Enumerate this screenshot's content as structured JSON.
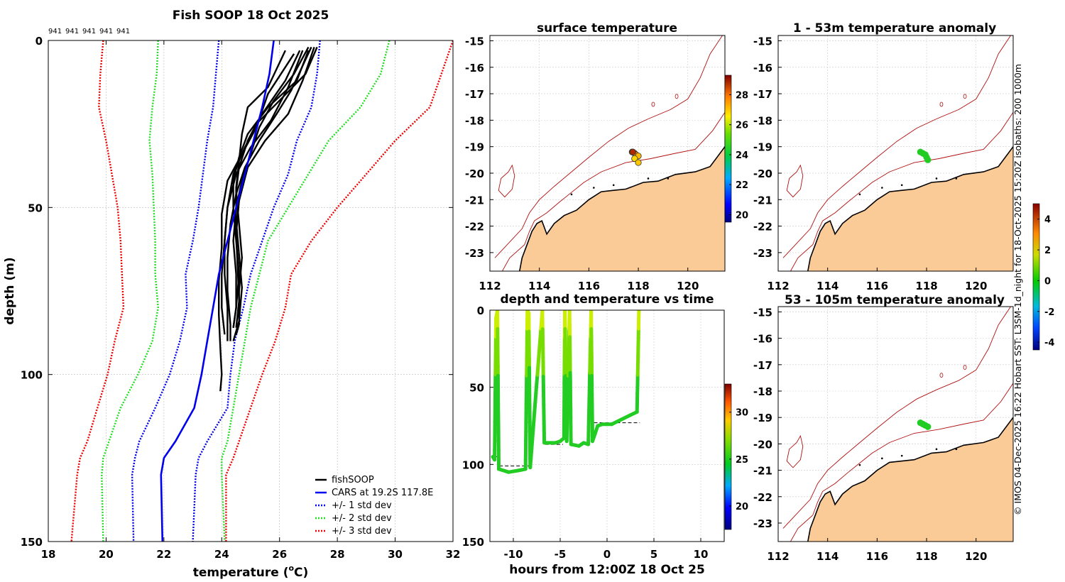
{
  "colors": {
    "land": "#fbcb97",
    "coast": "#000000",
    "isobath": "#b01010",
    "fishsoop": "#000000",
    "cars": "#0000ee",
    "std1": "#0000ee",
    "std2": "#22dd22",
    "std3": "#ee0000"
  },
  "chart_data": [
    {
      "id": "profile",
      "type": "line",
      "title": "Fish SOOP 18 Oct 2025",
      "xlabel_main": "temperature (",
      "xlabel_sup": "o",
      "xlabel_end": "C)",
      "ylabel": "depth (m)",
      "xlim": [
        18,
        32
      ],
      "ylim": [
        0,
        150
      ],
      "xticks": [
        "18",
        "20",
        "22",
        "24",
        "26",
        "28",
        "30",
        "32"
      ],
      "yticks": [
        "0",
        "50",
        "100",
        "150"
      ],
      "top_labels": [
        "941",
        "941",
        "941",
        "941",
        "941"
      ],
      "legend": [
        "fishSOOP",
        "CARS at 19.2S 117.8E",
        "+/- 1 std dev",
        "+/- 2 std dev",
        "+/- 3 std dev"
      ],
      "cars_depth": [
        0,
        10,
        20,
        30,
        40,
        50,
        60,
        70,
        80,
        90,
        100,
        110,
        120,
        125,
        130,
        150
      ],
      "cars_temp": [
        25.8,
        25.65,
        25.4,
        25.1,
        24.8,
        24.5,
        24.2,
        23.9,
        23.7,
        23.5,
        23.3,
        23.05,
        22.4,
        22.0,
        21.9,
        21.95
      ],
      "std_depth": [
        0,
        10,
        20,
        30,
        40,
        50,
        60,
        70,
        80,
        90,
        100,
        110,
        120,
        125,
        130,
        150
      ],
      "std1_low": [
        23.9,
        23.8,
        23.7,
        23.5,
        23.35,
        23.2,
        23.0,
        22.75,
        22.8,
        22.55,
        22.2,
        21.7,
        21.15,
        21.0,
        20.9,
        20.95
      ],
      "std1_high": [
        27.4,
        27.3,
        27.1,
        26.6,
        26.3,
        25.8,
        25.4,
        25.0,
        24.75,
        24.45,
        24.3,
        24.2,
        23.5,
        23.2,
        23.1,
        23.0
      ],
      "std2_low": [
        21.8,
        21.75,
        21.6,
        21.5,
        21.6,
        21.65,
        21.7,
        21.7,
        21.8,
        21.6,
        21.1,
        20.5,
        20.1,
        19.9,
        19.85,
        19.9
      ],
      "std2_high": [
        29.8,
        29.5,
        28.8,
        27.7,
        27.0,
        26.3,
        25.6,
        25.3,
        25.0,
        24.8,
        24.6,
        24.4,
        24.2,
        24.0,
        24.0,
        24.1
      ],
      "std3_low": [
        19.9,
        19.8,
        19.75,
        20.0,
        20.2,
        20.4,
        20.5,
        20.55,
        20.6,
        20.3,
        20.05,
        19.7,
        19.35,
        19.1,
        19.0,
        18.8
      ],
      "std3_high": [
        32.0,
        31.6,
        31.2,
        30.0,
        29.0,
        28.0,
        27.1,
        26.4,
        26.2,
        25.85,
        25.4,
        25.0,
        24.6,
        24.4,
        24.15,
        24.15
      ],
      "fishsoop_casts": [
        {
          "depth": [
            2,
            10,
            18,
            25,
            30,
            38,
            45,
            55,
            65,
            75,
            85,
            88
          ],
          "temp": [
            27.3,
            26.9,
            26.0,
            25.2,
            24.9,
            24.6,
            24.5,
            24.6,
            24.7,
            24.6,
            24.6,
            24.5
          ]
        },
        {
          "depth": [
            3,
            12,
            20,
            28,
            35,
            42,
            50,
            60,
            70,
            80,
            86
          ],
          "temp": [
            27.0,
            26.6,
            25.6,
            24.9,
            24.6,
            24.4,
            24.4,
            24.5,
            24.6,
            24.5,
            24.4
          ]
        },
        {
          "depth": [
            2,
            15,
            22,
            30,
            38,
            46,
            55,
            65,
            75,
            85,
            90
          ],
          "temp": [
            27.1,
            26.4,
            25.9,
            25.3,
            24.8,
            24.5,
            24.3,
            24.2,
            24.2,
            24.3,
            24.3
          ]
        },
        {
          "depth": [
            3,
            14,
            24,
            32,
            40,
            50,
            60,
            70,
            80,
            88
          ],
          "temp": [
            26.8,
            26.3,
            25.7,
            25.0,
            24.5,
            24.2,
            24.1,
            24.0,
            24.0,
            24.1
          ]
        },
        {
          "depth": [
            4,
            16,
            26,
            34,
            42,
            52,
            62,
            72,
            82,
            92,
            100,
            105
          ],
          "temp": [
            26.5,
            25.6,
            25.2,
            24.7,
            24.2,
            24.0,
            24.0,
            23.9,
            23.9,
            23.95,
            24.0,
            23.95
          ]
        },
        {
          "depth": [
            2,
            12,
            22,
            30,
            38,
            48,
            58,
            68,
            78,
            86
          ],
          "temp": [
            27.2,
            26.8,
            26.3,
            25.5,
            24.9,
            24.6,
            24.5,
            24.55,
            24.6,
            24.5
          ]
        },
        {
          "depth": [
            3,
            14,
            20,
            28,
            36,
            44,
            54,
            64,
            74,
            84,
            90
          ],
          "temp": [
            26.2,
            25.6,
            24.9,
            24.7,
            24.6,
            24.5,
            24.5,
            24.6,
            24.7,
            24.6,
            24.4
          ]
        },
        {
          "depth": [
            2,
            10,
            18,
            26,
            34,
            42,
            50,
            60,
            70,
            80,
            86
          ],
          "temp": [
            27.0,
            26.5,
            25.8,
            25.3,
            25.0,
            24.7,
            24.5,
            24.4,
            24.5,
            24.5,
            24.4
          ]
        },
        {
          "depth": [
            3,
            12,
            22,
            32,
            40,
            50,
            60,
            70,
            80,
            90
          ],
          "temp": [
            26.7,
            26.2,
            25.4,
            24.8,
            24.4,
            24.2,
            24.1,
            24.1,
            24.2,
            24.2
          ]
        }
      ]
    },
    {
      "id": "surface",
      "type": "scatter",
      "title": "surface temperature",
      "xlim": [
        112,
        121.5
      ],
      "ylim": [
        -23.7,
        -14.8
      ],
      "xticks": [
        "112",
        "114",
        "116",
        "118",
        "120"
      ],
      "yticks": [
        "-15",
        "-16",
        "-17",
        "-18",
        "-19",
        "-20",
        "-21",
        "-22",
        "-23"
      ],
      "cbar_ticks": [
        "20",
        "22",
        "24",
        "26",
        "28"
      ],
      "cbar_range": [
        19.5,
        29.3
      ],
      "points": [
        {
          "lon": 117.75,
          "lat": -19.2,
          "value": 28.5
        },
        {
          "lon": 117.85,
          "lat": -19.25,
          "value": 28.3
        },
        {
          "lon": 117.9,
          "lat": -19.3,
          "value": 27.5
        },
        {
          "lon": 118.0,
          "lat": -19.35,
          "value": 27.2
        },
        {
          "lon": 117.85,
          "lat": -19.45,
          "value": 26.8
        },
        {
          "lon": 118.0,
          "lat": -19.6,
          "value": 27.0
        },
        {
          "lon": 117.78,
          "lat": -19.2,
          "value": 28.8
        }
      ]
    },
    {
      "id": "anom1",
      "type": "scatter",
      "title": "1 - 53m temperature anomaly",
      "xlim": [
        112,
        121.5
      ],
      "ylim": [
        -23.7,
        -14.8
      ],
      "xticks": [
        "112",
        "114",
        "116",
        "118",
        "120"
      ],
      "yticks": [
        "-15",
        "-16",
        "-17",
        "-18",
        "-19",
        "-20",
        "-21",
        "-22",
        "-23"
      ],
      "points": [
        {
          "lon": 117.75,
          "lat": -19.2,
          "value": 0.2
        },
        {
          "lon": 117.85,
          "lat": -19.25,
          "value": 0.1
        },
        {
          "lon": 117.95,
          "lat": -19.3,
          "value": 0.3
        },
        {
          "lon": 118.0,
          "lat": -19.4,
          "value": 0.0
        },
        {
          "lon": 118.05,
          "lat": -19.5,
          "value": 0.2
        }
      ]
    },
    {
      "id": "anom2",
      "type": "scatter",
      "title": "53 - 105m temperature anomaly",
      "xlim": [
        112,
        121.5
      ],
      "ylim": [
        -23.7,
        -14.8
      ],
      "xticks": [
        "112",
        "114",
        "116",
        "118",
        "120"
      ],
      "yticks": [
        "-15",
        "-16",
        "-17",
        "-18",
        "-19",
        "-20",
        "-21",
        "-22",
        "-23"
      ],
      "cbar_ticks": [
        "4",
        "2",
        "0",
        "-2",
        "-4"
      ],
      "cbar_range": [
        -4.5,
        5.0
      ],
      "points": [
        {
          "lon": 117.75,
          "lat": -19.2,
          "value": 0.1
        },
        {
          "lon": 117.85,
          "lat": -19.25,
          "value": 0.0
        },
        {
          "lon": 117.95,
          "lat": -19.3,
          "value": 0.2
        },
        {
          "lon": 118.05,
          "lat": -19.35,
          "value": 0.1
        }
      ]
    },
    {
      "id": "timeseries",
      "type": "line",
      "title": "depth and temperature vs time",
      "xlabel": "hours from 12:00Z 18 Oct 25",
      "xlim": [
        -12.5,
        12.5
      ],
      "ylim": [
        0,
        150
      ],
      "xticks": [
        "-10",
        "-5",
        "0",
        "5",
        "10"
      ],
      "yticks": [
        "0",
        "50",
        "100",
        "150"
      ],
      "cbar_ticks": [
        "30",
        "25",
        "20"
      ],
      "cbar_range": [
        17.5,
        33
      ],
      "track": [
        {
          "t": -12.2,
          "d": 95
        },
        {
          "t": -12.0,
          "d": 97
        },
        {
          "t": -11.85,
          "d": 5
        },
        {
          "t": -11.7,
          "d": 0
        },
        {
          "t": -11.55,
          "d": 103
        },
        {
          "t": -10.5,
          "d": 105
        },
        {
          "t": -9.5,
          "d": 104
        },
        {
          "t": -8.7,
          "d": 103
        },
        {
          "t": -8.5,
          "d": 0
        },
        {
          "t": -8.35,
          "d": 2
        },
        {
          "t": -8.2,
          "d": 102
        },
        {
          "t": -6.9,
          "d": 0
        },
        {
          "t": -6.7,
          "d": 86
        },
        {
          "t": -5.5,
          "d": 86
        },
        {
          "t": -5.0,
          "d": 85
        },
        {
          "t": -4.6,
          "d": 83
        },
        {
          "t": -4.5,
          "d": 0
        },
        {
          "t": -4.3,
          "d": 85
        },
        {
          "t": -4.0,
          "d": 0
        },
        {
          "t": -3.85,
          "d": 87
        },
        {
          "t": -3.0,
          "d": 88
        },
        {
          "t": -2.5,
          "d": 86
        },
        {
          "t": -2.0,
          "d": 87
        },
        {
          "t": -1.7,
          "d": 0
        },
        {
          "t": -1.55,
          "d": 85
        },
        {
          "t": -1.0,
          "d": 75
        },
        {
          "t": -0.5,
          "d": 74
        },
        {
          "t": 0.5,
          "d": 74
        },
        {
          "t": 1.5,
          "d": 71
        },
        {
          "t": 2.5,
          "d": 68
        },
        {
          "t": 3.2,
          "d": 66
        },
        {
          "t": 3.4,
          "d": 0
        }
      ],
      "bottom_marks": [
        {
          "t0": -12.0,
          "t1": -11.6,
          "d": 95
        },
        {
          "t0": -11.5,
          "t1": -8.3,
          "d": 101
        },
        {
          "t0": -6.6,
          "t1": -4.7,
          "d": 87
        },
        {
          "t0": -1.4,
          "t1": 3.5,
          "d": 73
        }
      ]
    }
  ],
  "vertical_caption": "© IMOS 04-Dec-2025 16:22 Hobart SST: L3SM-1d_night for 18-Oct-2025 15:20Z isobaths: 200  1000m"
}
